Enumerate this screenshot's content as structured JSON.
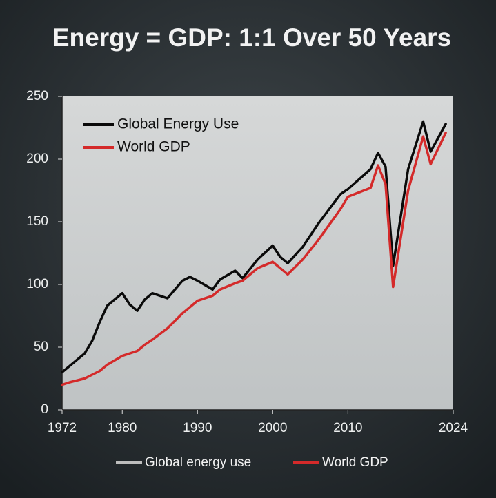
{
  "chart_data": {
    "type": "line",
    "title": "Energy = GDP: 1:1 Over 50 Years",
    "x": [
      1972,
      1973,
      1975,
      1976,
      1977,
      1978,
      1980,
      1981,
      1982,
      1983,
      1984,
      1986,
      1987,
      1988,
      1989,
      1990,
      1992,
      1993,
      1995,
      1996,
      1998,
      2000,
      2001,
      2002,
      2004,
      2006,
      2009,
      2010,
      2013,
      2014,
      2015,
      2016,
      2018,
      2020,
      2021,
      2023
    ],
    "series": [
      {
        "name": "Global Energy Use",
        "color": "#0a0a0a",
        "values": [
          30,
          35,
          45,
          55,
          70,
          83,
          93,
          84,
          79,
          88,
          93,
          89,
          96,
          103,
          106,
          103,
          96,
          104,
          111,
          105,
          120,
          131,
          122,
          117,
          130,
          148,
          172,
          176,
          192,
          205,
          194,
          115,
          192,
          230,
          206,
          228
        ]
      },
      {
        "name": "World GDP",
        "color": "#d42a2a",
        "values": [
          20,
          22,
          25,
          28,
          31,
          36,
          43,
          45,
          47,
          52,
          56,
          65,
          71,
          77,
          82,
          87,
          91,
          96,
          101,
          103,
          113,
          118,
          113,
          108,
          120,
          135,
          160,
          170,
          177,
          195,
          180,
          98,
          175,
          218,
          196,
          221
        ]
      }
    ],
    "legend_bottom": [
      {
        "label": "Global energy use",
        "color": "#bdbdbd"
      },
      {
        "label": "World GDP",
        "color": "#d42a2a"
      }
    ],
    "xlim": [
      1972,
      2024
    ],
    "xticks": [
      1972,
      1980,
      1990,
      2000,
      2010,
      2024
    ],
    "ylim": [
      0,
      250
    ],
    "yticks": [
      0,
      50,
      100,
      150,
      200,
      250
    ],
    "legend": "upper left"
  }
}
